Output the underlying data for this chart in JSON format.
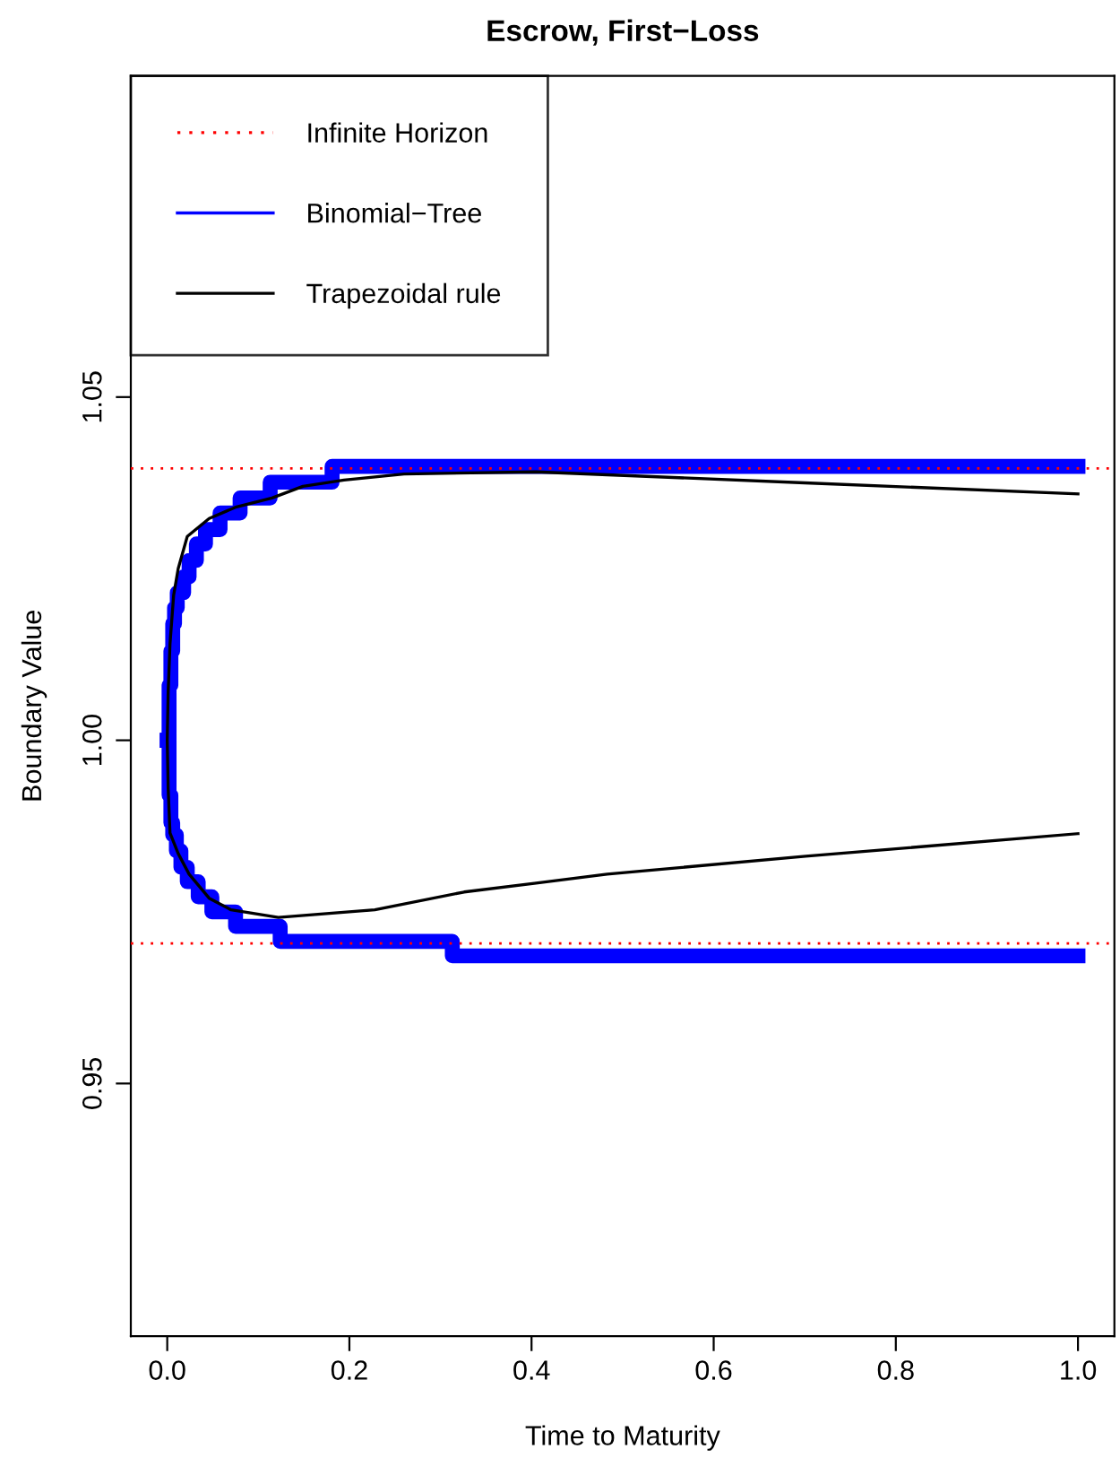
{
  "chart_data": {
    "type": "line",
    "title": "Escrow, First−Loss",
    "xlabel": "Time to Maturity",
    "ylabel": "Boundary Value",
    "xlim": [
      -0.04,
      1.04
    ],
    "xticks": [
      {
        "value": 0,
        "label": "0.0"
      },
      0.2,
      0.4,
      0.6,
      0.8,
      {
        "value": 1,
        "label": "1.0"
      }
    ],
    "ylim": [
      0.9132,
      1.0968
    ],
    "yticks": [
      0.95,
      {
        "value": 1,
        "label": "1.00"
      },
      1.05
    ],
    "grid": false,
    "legend": "top left",
    "series": [
      {
        "name": "Infinite Horizon",
        "line_style": "dotted",
        "color": "#ff0000",
        "x": [
          -0.04,
          1.04
        ],
        "values": [
          1.0396,
          1.0396
        ]
      },
      {
        "line_style": "dotted",
        "color": "#ff0000",
        "x": [
          -0.04,
          1.04
        ],
        "values": [
          0.9704,
          0.9704
        ]
      },
      {
        "name": "Binomial−Tree",
        "type": "step",
        "color": "#0000ff",
        "x": [
          0,
          0.002,
          0.004,
          0.006,
          0.008,
          0.011,
          0.018,
          0.024,
          0.032,
          0.042,
          0.058,
          0.08,
          0.113,
          0.181,
          1.0
        ],
        "values": [
          1.0,
          1.008,
          1.013,
          1.017,
          1.0193,
          1.0215,
          1.0238,
          1.0262,
          1.0286,
          1.0307,
          1.0331,
          1.0353,
          1.0376,
          1.0399,
          1.0399
        ]
      },
      {
        "type": "step",
        "color": "#0000ff",
        "x": [
          0,
          0.002,
          0.004,
          0.006,
          0.01,
          0.015,
          0.022,
          0.034,
          0.049,
          0.075,
          0.124,
          0.313,
          1.0
        ],
        "values": [
          1.0,
          0.992,
          0.988,
          0.9862,
          0.9839,
          0.9815,
          0.9794,
          0.9772,
          0.975,
          0.9729,
          0.9707,
          0.9686,
          0.9686
        ]
      },
      {
        "name": "Trapezoidal rule",
        "color": "#000000",
        "x": [
          1.0,
          0.701,
          0.483,
          0.405,
          0.326,
          0.228,
          0.122,
          0.07,
          0.046,
          0.024,
          0.012,
          0.003,
          0.001,
          0,
          0.001,
          0.003,
          0.007,
          0.012,
          0.022,
          0.046,
          0.076,
          0.115,
          0.149,
          0.194,
          0.26,
          0.405,
          0.7,
          1.0
        ],
        "values": [
          0.9864,
          0.9831,
          0.9805,
          0.9792,
          0.9779,
          0.9753,
          0.9742,
          0.9753,
          0.977,
          0.9805,
          0.9835,
          0.9865,
          0.993,
          1.0,
          1.007,
          1.014,
          1.0211,
          1.025,
          1.0297,
          1.0323,
          1.034,
          1.0353,
          1.037,
          1.0379,
          1.0388,
          1.0391,
          1.0375,
          1.0359
        ]
      }
    ]
  }
}
